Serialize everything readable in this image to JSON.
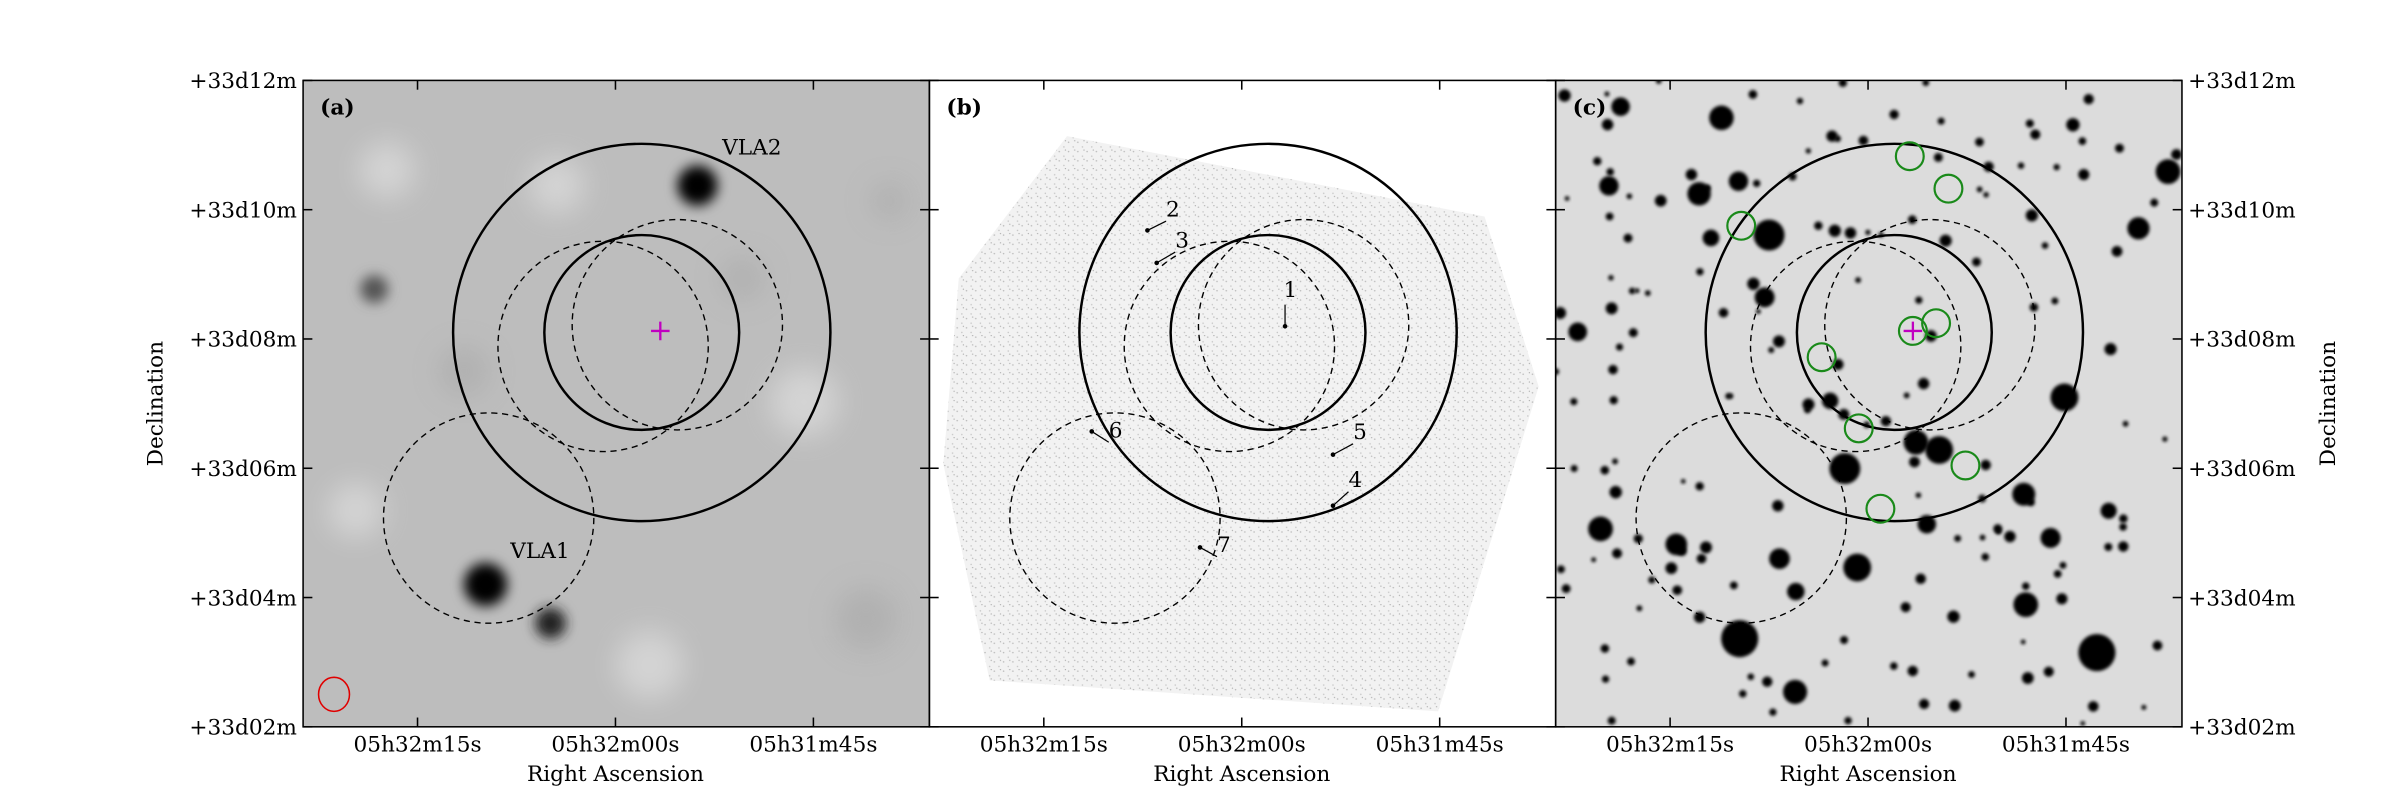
{
  "figure": {
    "panels": [
      {
        "label": "(a)",
        "annotations": [
          "VLA2",
          "VLA1"
        ]
      },
      {
        "label": "(b)",
        "annotations": [
          "1",
          "2",
          "3",
          "4",
          "5",
          "6",
          "7"
        ]
      },
      {
        "label": "(c)"
      }
    ],
    "y_ticks": [
      "+33d12m",
      "+33d10m",
      "+33d08m",
      "+33d06m",
      "+33d04m",
      "+33d02m"
    ],
    "x_ticks": [
      "05h32m15s",
      "05h32m00s",
      "05h31m45s"
    ],
    "x_label": "Right Ascension",
    "y_label": "Declination"
  }
}
